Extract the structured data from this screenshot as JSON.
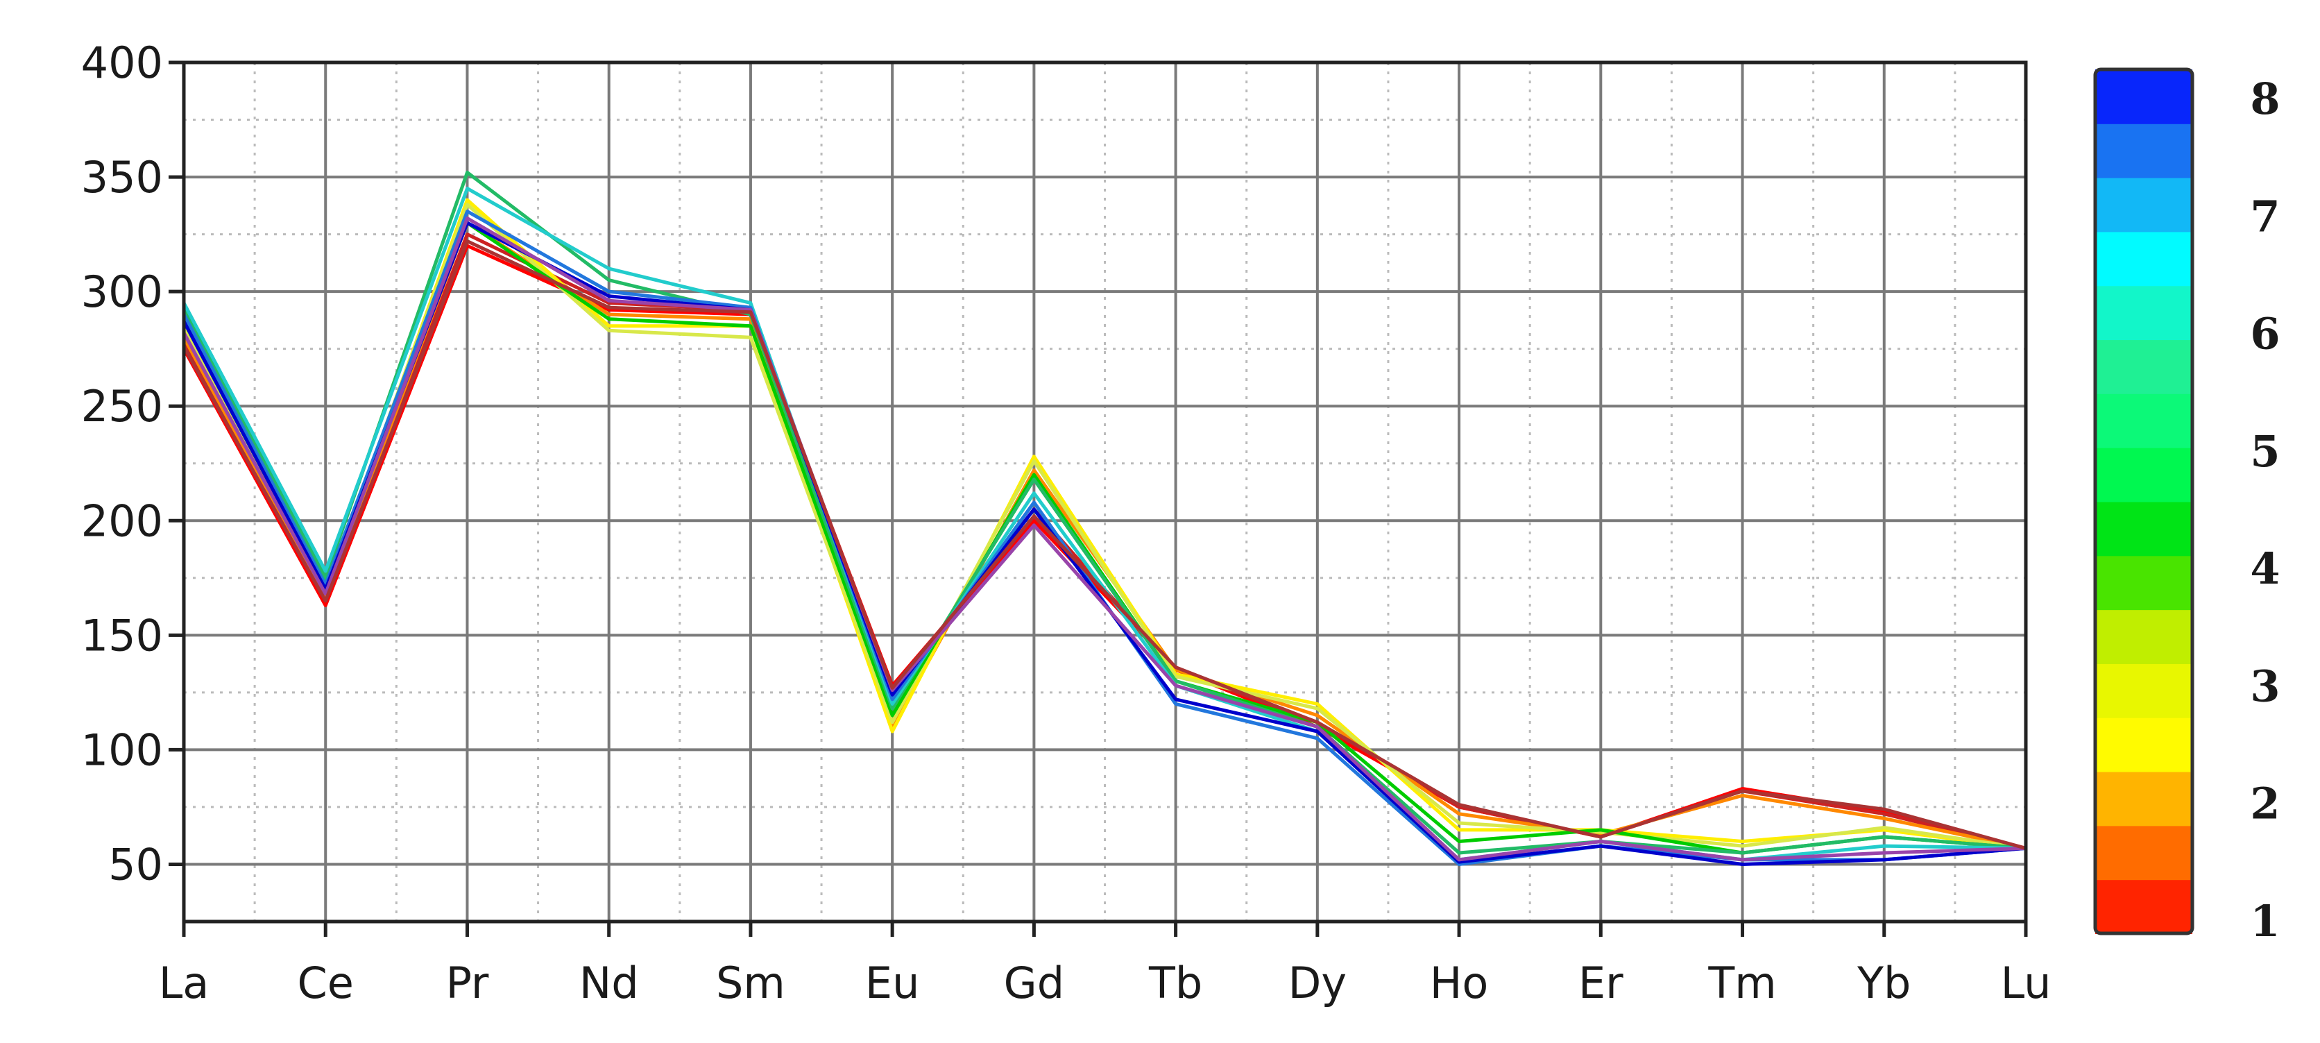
{
  "chart_data": {
    "type": "line",
    "categories": [
      "La",
      "Ce",
      "Pr",
      "Nd",
      "Sm",
      "Eu",
      "Gd",
      "Tb",
      "Dy",
      "Ho",
      "Er",
      "Tm",
      "Yb",
      "Lu"
    ],
    "ylim": [
      25,
      400
    ],
    "yticks": [
      50,
      100,
      150,
      200,
      250,
      300,
      350,
      400
    ],
    "ytick_labels": [
      "50",
      "100",
      "150",
      "200",
      "250",
      "300",
      "350",
      "400"
    ],
    "grid": true,
    "series": [
      {
        "color": "#ff0000",
        "values": [
          275,
          163,
          320,
          292,
          290,
          128,
          200,
          135,
          110,
          75,
          62,
          83,
          73,
          57
        ]
      },
      {
        "color": "#cc2222",
        "values": [
          278,
          165,
          325,
          295,
          292,
          125,
          205,
          135,
          112,
          75,
          62,
          82,
          72,
          57
        ]
      },
      {
        "color": "#ff8800",
        "values": [
          280,
          166,
          330,
          290,
          288,
          110,
          222,
          135,
          115,
          72,
          63,
          80,
          70,
          57
        ]
      },
      {
        "color": "#ffee00",
        "values": [
          283,
          168,
          340,
          285,
          285,
          108,
          228,
          133,
          120,
          65,
          65,
          60,
          65,
          57
        ]
      },
      {
        "color": "#d8e84a",
        "values": [
          285,
          170,
          338,
          283,
          280,
          112,
          226,
          132,
          118,
          68,
          64,
          58,
          66,
          57
        ]
      },
      {
        "color": "#00cc00",
        "values": [
          288,
          172,
          330,
          288,
          285,
          115,
          220,
          130,
          112,
          60,
          65,
          55,
          62,
          57
        ]
      },
      {
        "color": "#22bb66",
        "values": [
          292,
          175,
          352,
          305,
          290,
          118,
          218,
          130,
          110,
          55,
          60,
          55,
          62,
          57
        ]
      },
      {
        "color": "#22cccc",
        "values": [
          295,
          178,
          345,
          310,
          295,
          120,
          212,
          128,
          108,
          52,
          60,
          52,
          58,
          57
        ]
      },
      {
        "color": "#2277dd",
        "values": [
          290,
          172,
          335,
          300,
          293,
          122,
          208,
          120,
          105,
          50,
          58,
          52,
          52,
          57
        ]
      },
      {
        "color": "#0000cc",
        "values": [
          287,
          170,
          330,
          298,
          292,
          124,
          205,
          122,
          108,
          51,
          58,
          50,
          52,
          57
        ]
      },
      {
        "color": "#9944aa",
        "values": [
          282,
          168,
          332,
          296,
          292,
          126,
          198,
          128,
          110,
          52,
          60,
          52,
          55,
          57
        ]
      },
      {
        "color": "#aa3333",
        "values": [
          276,
          165,
          322,
          293,
          291,
          127,
          202,
          136,
          112,
          76,
          62,
          82,
          74,
          57
        ]
      }
    ],
    "colorbar": {
      "labels": [
        "1",
        "2",
        "3",
        "4",
        "5",
        "6",
        "7",
        "8"
      ],
      "colors": [
        "#ff0000",
        "#ff8000",
        "#ffff00",
        "#d4f000",
        "#00dd00",
        "#00ff66",
        "#22ee99",
        "#00ffff",
        "#1e88f0",
        "#0000ff"
      ]
    }
  }
}
